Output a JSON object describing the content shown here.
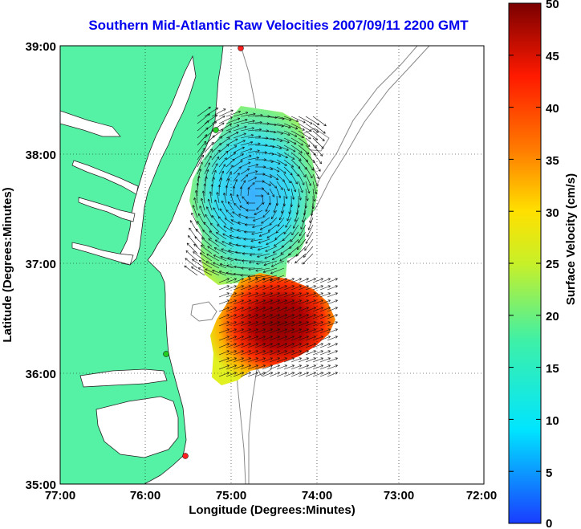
{
  "title": "Southern Mid-Atlantic Raw Velocities 2007/09/11 2200 GMT",
  "x_axis": {
    "label": "Longitude (Degrees:Minutes)",
    "ticks": [
      "77:00",
      "76:00",
      "75:00",
      "74:00",
      "73:00",
      "72:00"
    ]
  },
  "y_axis": {
    "label": "Latitude (Degrees:Minutes)",
    "ticks": [
      "39:00",
      "38:00",
      "37:00",
      "36:00",
      "35:00"
    ]
  },
  "colorbar": {
    "label": "Surface Velocity (cm/s)",
    "ticks": [
      "50",
      "45",
      "40",
      "35",
      "30",
      "25",
      "20",
      "15",
      "10",
      "5",
      "0"
    ],
    "min": 0,
    "max": 50
  },
  "colors": {
    "land": "#55f2a6",
    "water": "#ffffff",
    "title": "#0000ee",
    "station": "#ff2020",
    "station_green": "#22cc22"
  }
}
